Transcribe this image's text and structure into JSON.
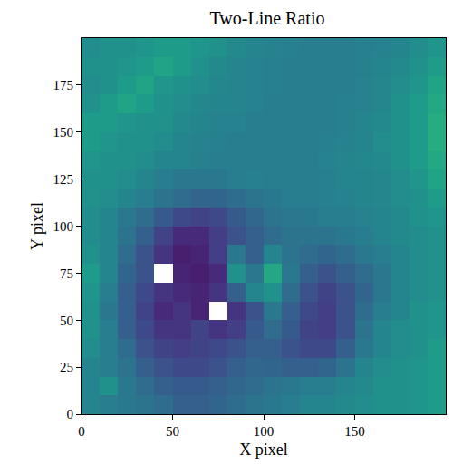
{
  "chart_data": {
    "type": "heatmap",
    "title": "Two-Line Ratio",
    "x_label": "X pixel",
    "y_label": "Y pixel",
    "x": [
      5,
      15,
      25,
      35,
      45,
      55,
      65,
      75,
      85,
      95,
      105,
      115,
      125,
      135,
      145,
      155,
      165,
      175,
      185,
      195
    ],
    "y": [
      5,
      15,
      25,
      35,
      45,
      55,
      65,
      75,
      85,
      95,
      105,
      115,
      125,
      135,
      145,
      155,
      165,
      175,
      185,
      195
    ],
    "cells": [
      [
        0.45,
        0.42,
        0.4,
        0.38,
        0.35,
        0.3,
        0.3,
        0.32,
        0.35,
        0.38,
        0.4,
        0.42,
        0.45,
        0.45,
        0.47,
        0.48,
        0.5,
        0.5,
        0.52,
        0.55
      ],
      [
        0.45,
        0.5,
        0.4,
        0.35,
        0.3,
        0.28,
        0.28,
        0.3,
        0.33,
        0.35,
        0.38,
        0.4,
        0.42,
        0.42,
        0.45,
        0.47,
        0.5,
        0.5,
        0.52,
        0.55
      ],
      [
        0.45,
        0.42,
        0.38,
        0.3,
        0.25,
        0.22,
        0.22,
        0.25,
        0.3,
        0.33,
        0.32,
        0.3,
        0.3,
        0.32,
        0.38,
        0.45,
        0.48,
        0.5,
        0.52,
        0.55
      ],
      [
        0.48,
        0.42,
        0.35,
        0.25,
        0.2,
        0.18,
        0.2,
        0.22,
        0.25,
        0.3,
        0.3,
        0.25,
        0.22,
        0.22,
        0.3,
        0.4,
        0.45,
        0.48,
        0.5,
        0.55
      ],
      [
        0.5,
        0.42,
        0.3,
        0.22,
        0.15,
        0.15,
        0.2,
        0.15,
        0.18,
        0.28,
        0.35,
        0.28,
        0.2,
        0.18,
        0.25,
        0.38,
        0.45,
        0.48,
        0.5,
        0.52
      ],
      [
        0.5,
        0.4,
        0.3,
        0.2,
        0.12,
        0.15,
        0.1,
        null,
        0.15,
        0.25,
        0.4,
        0.3,
        0.22,
        0.18,
        0.25,
        0.35,
        0.42,
        0.45,
        0.5,
        0.52
      ],
      [
        0.52,
        0.42,
        0.3,
        0.22,
        0.15,
        0.12,
        0.1,
        0.15,
        0.3,
        0.45,
        0.5,
        0.35,
        0.25,
        0.2,
        0.25,
        0.32,
        0.4,
        0.45,
        0.48,
        0.5
      ],
      [
        0.55,
        0.45,
        0.32,
        0.25,
        null,
        0.1,
        0.08,
        0.12,
        0.5,
        0.4,
        0.6,
        0.4,
        0.3,
        0.25,
        0.3,
        0.35,
        0.4,
        0.45,
        0.48,
        0.5
      ],
      [
        0.5,
        0.45,
        0.35,
        0.25,
        0.15,
        0.08,
        0.1,
        0.18,
        0.4,
        0.3,
        0.45,
        0.38,
        0.35,
        0.32,
        0.35,
        0.4,
        0.42,
        0.45,
        0.48,
        0.5
      ],
      [
        0.48,
        0.45,
        0.38,
        0.3,
        0.2,
        0.12,
        0.12,
        0.18,
        0.25,
        0.3,
        0.35,
        0.38,
        0.38,
        0.38,
        0.4,
        0.42,
        0.45,
        0.47,
        0.48,
        0.5
      ],
      [
        0.48,
        0.45,
        0.4,
        0.35,
        0.28,
        0.22,
        0.2,
        0.22,
        0.28,
        0.33,
        0.38,
        0.4,
        0.4,
        0.42,
        0.42,
        0.44,
        0.45,
        0.47,
        0.5,
        0.52
      ],
      [
        0.5,
        0.48,
        0.45,
        0.42,
        0.38,
        0.35,
        0.32,
        0.32,
        0.35,
        0.38,
        0.4,
        0.42,
        0.42,
        0.43,
        0.44,
        0.45,
        0.46,
        0.48,
        0.5,
        0.55
      ],
      [
        0.5,
        0.5,
        0.48,
        0.45,
        0.42,
        0.4,
        0.4,
        0.4,
        0.42,
        0.43,
        0.42,
        0.42,
        0.42,
        0.43,
        0.45,
        0.45,
        0.46,
        0.48,
        0.52,
        0.58
      ],
      [
        0.52,
        0.5,
        0.5,
        0.48,
        0.45,
        0.45,
        0.43,
        0.42,
        0.42,
        0.42,
        0.42,
        0.42,
        0.42,
        0.44,
        0.45,
        0.46,
        0.47,
        0.5,
        0.55,
        0.6
      ],
      [
        0.55,
        0.52,
        0.5,
        0.5,
        0.48,
        0.45,
        0.44,
        0.43,
        0.42,
        0.42,
        0.42,
        0.42,
        0.42,
        0.43,
        0.44,
        0.45,
        0.48,
        0.5,
        0.55,
        0.62
      ],
      [
        0.55,
        0.55,
        0.52,
        0.5,
        0.5,
        0.47,
        0.45,
        0.44,
        0.44,
        0.42,
        0.42,
        0.42,
        0.42,
        0.42,
        0.43,
        0.45,
        0.47,
        0.5,
        0.55,
        0.62
      ],
      [
        0.5,
        0.55,
        0.58,
        0.55,
        0.5,
        0.48,
        0.46,
        0.45,
        0.45,
        0.44,
        0.42,
        0.42,
        0.42,
        0.42,
        0.43,
        0.44,
        0.46,
        0.5,
        0.55,
        0.6
      ],
      [
        0.48,
        0.5,
        0.55,
        0.58,
        0.52,
        0.5,
        0.48,
        0.46,
        0.45,
        0.44,
        0.43,
        0.42,
        0.42,
        0.42,
        0.42,
        0.44,
        0.46,
        0.48,
        0.52,
        0.58
      ],
      [
        0.5,
        0.5,
        0.52,
        0.55,
        0.58,
        0.55,
        0.5,
        0.47,
        0.45,
        0.44,
        0.43,
        0.42,
        0.42,
        0.42,
        0.42,
        0.43,
        0.45,
        0.47,
        0.5,
        0.55
      ],
      [
        0.48,
        0.5,
        0.5,
        0.52,
        0.55,
        0.55,
        0.52,
        0.5,
        0.47,
        0.45,
        0.44,
        0.43,
        0.42,
        0.42,
        0.42,
        0.43,
        0.44,
        0.45,
        0.48,
        0.52
      ]
    ],
    "zlim": [
      0,
      1
    ],
    "color": "viridis",
    "xlim": [
      0,
      200
    ],
    "ylim": [
      0,
      200
    ],
    "xticks": [
      0,
      50,
      100,
      150
    ],
    "yticks": [
      0,
      25,
      50,
      75,
      100,
      125,
      150,
      175
    ],
    "grid": false
  }
}
